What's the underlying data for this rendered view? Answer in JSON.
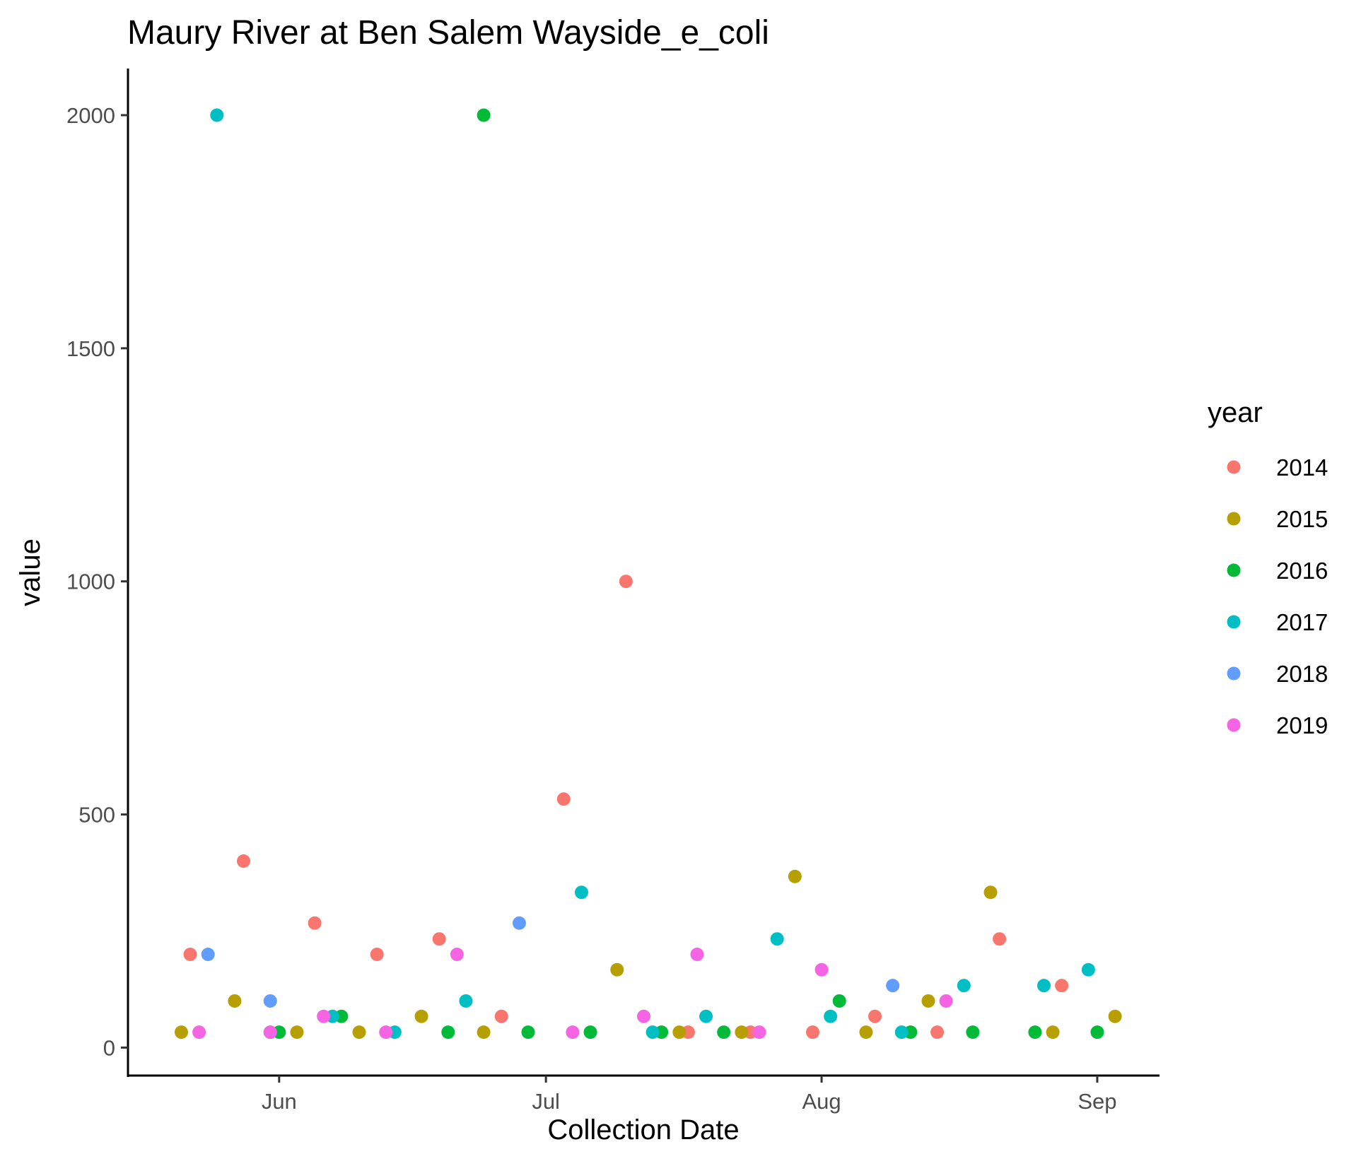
{
  "chart_data": {
    "type": "scatter",
    "title": "Maury River at Ben Salem Wayside_e_coli",
    "xlabel": "Collection Date",
    "ylabel": "value",
    "x_axis_type": "date",
    "xlim": [
      "05-15",
      "09-08"
    ],
    "ylim": [
      -60,
      2100
    ],
    "x_ticks": [
      {
        "date": "06-01",
        "label": "Jun"
      },
      {
        "date": "07-01",
        "label": "Jul"
      },
      {
        "date": "08-01",
        "label": "Aug"
      },
      {
        "date": "09-01",
        "label": "Sep"
      }
    ],
    "y_ticks": [
      0,
      500,
      1000,
      1500,
      2000
    ],
    "grid": false,
    "legend": {
      "title": "year",
      "position": "right"
    },
    "series": [
      {
        "name": "2014",
        "color": "#F8766D",
        "points": [
          {
            "x": "05-22",
            "y": 200
          },
          {
            "x": "05-28",
            "y": 400
          },
          {
            "x": "06-05",
            "y": 267
          },
          {
            "x": "06-12",
            "y": 200
          },
          {
            "x": "06-19",
            "y": 233
          },
          {
            "x": "06-26",
            "y": 67
          },
          {
            "x": "07-03",
            "y": 533
          },
          {
            "x": "07-10",
            "y": 1000
          },
          {
            "x": "07-17",
            "y": 33
          },
          {
            "x": "07-24",
            "y": 33
          },
          {
            "x": "07-31",
            "y": 33
          },
          {
            "x": "08-07",
            "y": 67
          },
          {
            "x": "08-14",
            "y": 33
          },
          {
            "x": "08-21",
            "y": 233
          },
          {
            "x": "08-28",
            "y": 133
          }
        ]
      },
      {
        "name": "2015",
        "color": "#B79F00",
        "points": [
          {
            "x": "05-21",
            "y": 33
          },
          {
            "x": "05-27",
            "y": 100
          },
          {
            "x": "06-03",
            "y": 33
          },
          {
            "x": "06-10",
            "y": 33
          },
          {
            "x": "06-17",
            "y": 67
          },
          {
            "x": "06-24",
            "y": 33
          },
          {
            "x": "07-09",
            "y": 167
          },
          {
            "x": "07-16",
            "y": 33
          },
          {
            "x": "07-23",
            "y": 33
          },
          {
            "x": "07-29",
            "y": 367
          },
          {
            "x": "08-06",
            "y": 33
          },
          {
            "x": "08-13",
            "y": 100
          },
          {
            "x": "08-20",
            "y": 333
          },
          {
            "x": "08-27",
            "y": 33
          },
          {
            "x": "09-03",
            "y": 67
          }
        ]
      },
      {
        "name": "2016",
        "color": "#00BA38",
        "points": [
          {
            "x": "06-01",
            "y": 33
          },
          {
            "x": "06-08",
            "y": 67
          },
          {
            "x": "06-20",
            "y": 33
          },
          {
            "x": "06-24",
            "y": 2000
          },
          {
            "x": "06-29",
            "y": 33
          },
          {
            "x": "07-06",
            "y": 33
          },
          {
            "x": "07-14",
            "y": 33
          },
          {
            "x": "07-21",
            "y": 33
          },
          {
            "x": "08-03",
            "y": 100
          },
          {
            "x": "08-11",
            "y": 33
          },
          {
            "x": "08-18",
            "y": 33
          },
          {
            "x": "08-25",
            "y": 33
          },
          {
            "x": "09-01",
            "y": 33
          }
        ]
      },
      {
        "name": "2017",
        "color": "#00BFC4",
        "points": [
          {
            "x": "05-25",
            "y": 2000
          },
          {
            "x": "05-31",
            "y": 33
          },
          {
            "x": "06-07",
            "y": 67
          },
          {
            "x": "06-14",
            "y": 33
          },
          {
            "x": "06-22",
            "y": 100
          },
          {
            "x": "07-05",
            "y": 333
          },
          {
            "x": "07-13",
            "y": 33
          },
          {
            "x": "07-19",
            "y": 67
          },
          {
            "x": "07-27",
            "y": 233
          },
          {
            "x": "08-02",
            "y": 67
          },
          {
            "x": "08-10",
            "y": 33
          },
          {
            "x": "08-17",
            "y": 133
          },
          {
            "x": "08-26",
            "y": 133
          },
          {
            "x": "08-31",
            "y": 167
          }
        ]
      },
      {
        "name": "2018",
        "color": "#619CFF",
        "points": [
          {
            "x": "05-24",
            "y": 200
          },
          {
            "x": "05-31",
            "y": 100
          },
          {
            "x": "06-28",
            "y": 267
          },
          {
            "x": "08-09",
            "y": 133
          }
        ]
      },
      {
        "name": "2019",
        "color": "#F564E3",
        "points": [
          {
            "x": "05-23",
            "y": 33
          },
          {
            "x": "05-31",
            "y": 33
          },
          {
            "x": "06-06",
            "y": 67
          },
          {
            "x": "06-13",
            "y": 33
          },
          {
            "x": "06-21",
            "y": 200
          },
          {
            "x": "07-04",
            "y": 33
          },
          {
            "x": "07-12",
            "y": 67
          },
          {
            "x": "07-18",
            "y": 200
          },
          {
            "x": "07-25",
            "y": 33
          },
          {
            "x": "08-01",
            "y": 167
          },
          {
            "x": "08-15",
            "y": 100
          }
        ]
      }
    ]
  }
}
